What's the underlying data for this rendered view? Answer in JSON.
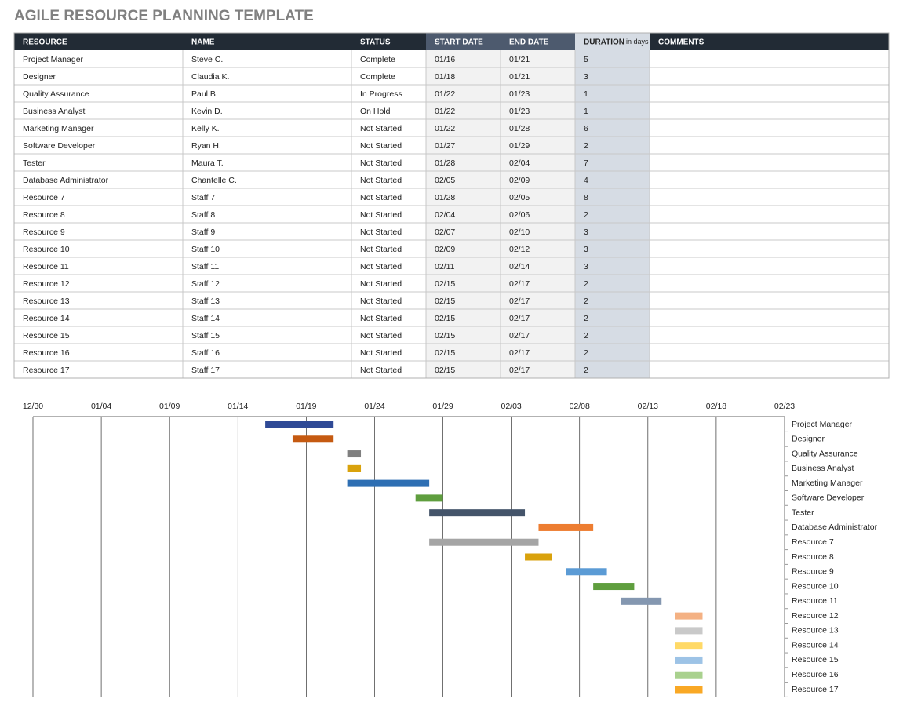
{
  "title": "AGILE RESOURCE PLANNING TEMPLATE",
  "table": {
    "headers": [
      "RESOURCE",
      "NAME",
      "STATUS",
      "START DATE",
      "END DATE",
      "DURATION",
      "COMMENTS"
    ],
    "duration_unit": "in days",
    "rows": [
      [
        "Project Manager",
        "Steve C.",
        "Complete",
        "01/16",
        "01/21",
        5
      ],
      [
        "Designer",
        "Claudia K.",
        "Complete",
        "01/18",
        "01/21",
        3
      ],
      [
        "Quality Assurance",
        "Paul B.",
        "In Progress",
        "01/22",
        "01/23",
        1
      ],
      [
        "Business Analyst",
        "Kevin D.",
        "On Hold",
        "01/22",
        "01/23",
        1
      ],
      [
        "Marketing Manager",
        "Kelly K.",
        "Not Started",
        "01/22",
        "01/28",
        6
      ],
      [
        "Software Developer",
        "Ryan H.",
        "Not Started",
        "01/27",
        "01/29",
        2
      ],
      [
        "Tester",
        "Maura T.",
        "Not Started",
        "01/28",
        "02/04",
        7
      ],
      [
        "Database Administrator",
        "Chantelle C.",
        "Not Started",
        "02/05",
        "02/09",
        4
      ],
      [
        "Resource 7",
        "Staff 7",
        "Not Started",
        "01/28",
        "02/05",
        8
      ],
      [
        "Resource 8",
        "Staff 8",
        "Not Started",
        "02/04",
        "02/06",
        2
      ],
      [
        "Resource 9",
        "Staff 9",
        "Not Started",
        "02/07",
        "02/10",
        3
      ],
      [
        "Resource 10",
        "Staff 10",
        "Not Started",
        "02/09",
        "02/12",
        3
      ],
      [
        "Resource 11",
        "Staff 11",
        "Not Started",
        "02/11",
        "02/14",
        3
      ],
      [
        "Resource 12",
        "Staff 12",
        "Not Started",
        "02/15",
        "02/17",
        2
      ],
      [
        "Resource 13",
        "Staff 13",
        "Not Started",
        "02/15",
        "02/17",
        2
      ],
      [
        "Resource 14",
        "Staff 14",
        "Not Started",
        "02/15",
        "02/17",
        2
      ],
      [
        "Resource 15",
        "Staff 15",
        "Not Started",
        "02/15",
        "02/17",
        2
      ],
      [
        "Resource 16",
        "Staff 16",
        "Not Started",
        "02/15",
        "02/17",
        2
      ],
      [
        "Resource 17",
        "Staff 17",
        "Not Started",
        "02/15",
        "02/17",
        2
      ]
    ]
  },
  "chart_data": {
    "type": "gantt",
    "categories": [
      "Project Manager",
      "Designer",
      "Quality Assurance",
      "Business Analyst",
      "Marketing Manager",
      "Software Developer",
      "Tester",
      "Database Administrator",
      "Resource 7",
      "Resource 8",
      "Resource 9",
      "Resource 10",
      "Resource 11",
      "Resource 12",
      "Resource 13",
      "Resource 14",
      "Resource 15",
      "Resource 16",
      "Resource 17"
    ],
    "colors": [
      "#2f4a96",
      "#c55a11",
      "#7f7f7f",
      "#d9a20c",
      "#2e6fb3",
      "#5f9e3e",
      "#44546a",
      "#ed7d31",
      "#a5a5a5",
      "#d9a20c",
      "#5b9bd5",
      "#5f9e3e",
      "#8497b0",
      "#f4b183",
      "#c9c9c9",
      "#ffd966",
      "#9dc3e6",
      "#a9d18e",
      "#f9a825"
    ],
    "xlim": [
      "12/30",
      "02/23"
    ],
    "xticks": [
      "12/30",
      "01/04",
      "01/09",
      "01/14",
      "01/19",
      "01/24",
      "01/29",
      "02/03",
      "02/08",
      "02/13",
      "02/18",
      "02/23"
    ],
    "grid": true
  }
}
